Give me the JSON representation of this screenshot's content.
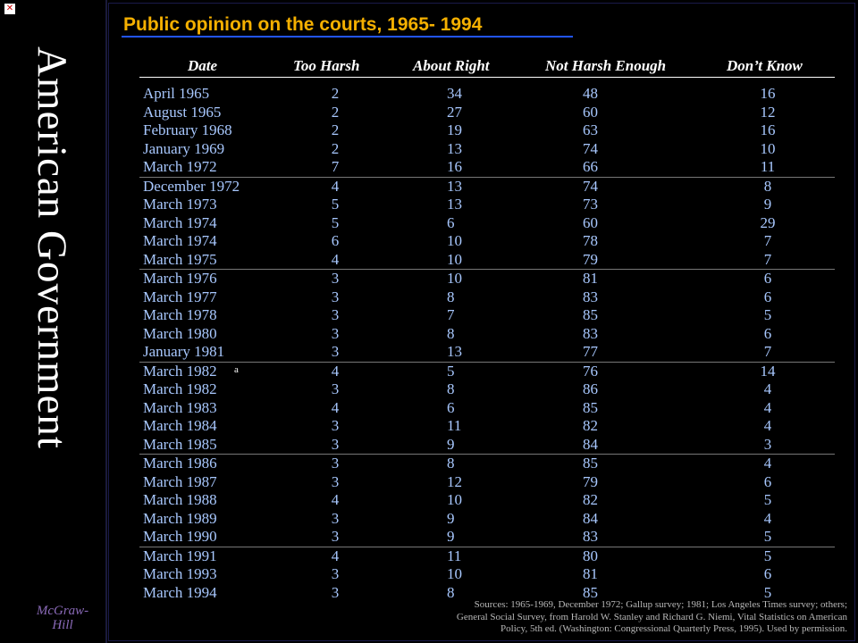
{
  "sidebar": {
    "vertical_title": "American Government",
    "logo": "McGraw-Hill"
  },
  "slide": {
    "title": "Public opinion on the courts, 1965- 1994",
    "headers": [
      "Date",
      "Too Harsh",
      "About Right",
      "Not Harsh Enough",
      "Don’t Know"
    ],
    "rows": [
      {
        "date": "April 1965",
        "too_harsh": "2",
        "about_right": "34",
        "not_harsh": "48",
        "dont_know": "16"
      },
      {
        "date": "August 1965",
        "too_harsh": "2",
        "about_right": "27",
        "not_harsh": "60",
        "dont_know": "12"
      },
      {
        "date": "February 1968",
        "too_harsh": "2",
        "about_right": "19",
        "not_harsh": "63",
        "dont_know": "16"
      },
      {
        "date": "January 1969",
        "too_harsh": "2",
        "about_right": "13",
        "not_harsh": "74",
        "dont_know": "10"
      },
      {
        "date": "March 1972",
        "too_harsh": "7",
        "about_right": "16",
        "not_harsh": "66",
        "dont_know": "11"
      },
      {
        "date": "December 1972",
        "too_harsh": "4",
        "about_right": "13",
        "not_harsh": "74",
        "dont_know": "8"
      },
      {
        "date": "March 1973",
        "too_harsh": "5",
        "about_right": "13",
        "not_harsh": "73",
        "dont_know": "9"
      },
      {
        "date": "March 1974",
        "too_harsh": "5",
        "about_right": "6",
        "not_harsh": "60",
        "dont_know": "29"
      },
      {
        "date": "March 1974",
        "too_harsh": "6",
        "about_right": "10",
        "not_harsh": "78",
        "dont_know": "7"
      },
      {
        "date": "March 1975",
        "too_harsh": "4",
        "about_right": "10",
        "not_harsh": "79",
        "dont_know": "7"
      },
      {
        "date": "March 1976",
        "too_harsh": "3",
        "about_right": "10",
        "not_harsh": "81",
        "dont_know": "6"
      },
      {
        "date": "March 1977",
        "too_harsh": "3",
        "about_right": "8",
        "not_harsh": "83",
        "dont_know": "6"
      },
      {
        "date": "March 1978",
        "too_harsh": "3",
        "about_right": "7",
        "not_harsh": "85",
        "dont_know": "5"
      },
      {
        "date": "March 1980",
        "too_harsh": "3",
        "about_right": "8",
        "not_harsh": "83",
        "dont_know": "6"
      },
      {
        "date": "January 1981",
        "too_harsh": "3",
        "about_right": "13",
        "not_harsh": "77",
        "dont_know": "7"
      },
      {
        "date": "March 1982",
        "sup": "a",
        "too_harsh": "4",
        "about_right": "5",
        "not_harsh": "76",
        "dont_know": "14"
      },
      {
        "date": "March 1982",
        "too_harsh": "3",
        "about_right": "8",
        "not_harsh": "86",
        "dont_know": "4"
      },
      {
        "date": "March 1983",
        "too_harsh": "4",
        "about_right": "6",
        "not_harsh": "85",
        "dont_know": "4"
      },
      {
        "date": "March 1984",
        "too_harsh": "3",
        "about_right": "11",
        "not_harsh": "82",
        "dont_know": "4"
      },
      {
        "date": "March 1985",
        "too_harsh": "3",
        "about_right": "9",
        "not_harsh": "84",
        "dont_know": "3"
      },
      {
        "date": "March 1986",
        "too_harsh": "3",
        "about_right": "8",
        "not_harsh": "85",
        "dont_know": "4"
      },
      {
        "date": "March 1987",
        "too_harsh": "3",
        "about_right": "12",
        "not_harsh": "79",
        "dont_know": "6"
      },
      {
        "date": "March 1988",
        "too_harsh": "4",
        "about_right": "10",
        "not_harsh": "82",
        "dont_know": "5"
      },
      {
        "date": "March 1989",
        "too_harsh": "3",
        "about_right": "9",
        "not_harsh": "84",
        "dont_know": "4"
      },
      {
        "date": "March 1990",
        "too_harsh": "3",
        "about_right": "9",
        "not_harsh": "83",
        "dont_know": "5"
      },
      {
        "date": "March 1991",
        "too_harsh": "4",
        "about_right": "11",
        "not_harsh": "80",
        "dont_know": "5"
      },
      {
        "date": "March 1993",
        "too_harsh": "3",
        "about_right": "10",
        "not_harsh": "81",
        "dont_know": "6"
      },
      {
        "date": "March 1994",
        "too_harsh": "3",
        "about_right": "8",
        "not_harsh": "85",
        "dont_know": "5"
      }
    ],
    "sources": [
      "Sources: 1965-1969, December 1972; Gallup survey; 1981; Los Angeles Times survey; others;",
      "General Social Survey, from Harold W. Stanley and Richard G. Niemi, Vital Statistics on American",
      "Policy, 5th ed. (Washington: Congressional Quarterly Press, 1995). Used by permission."
    ]
  },
  "colors": {
    "background": "#000000",
    "title": "#f5b000",
    "title_underline": "#2255ff",
    "table_text": "#a8c8ff",
    "header_text": "#ffffff"
  }
}
